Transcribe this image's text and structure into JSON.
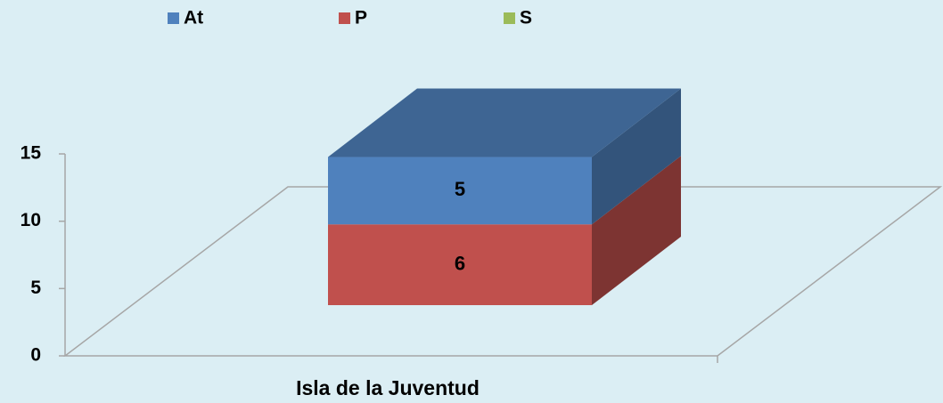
{
  "chart_data": {
    "type": "bar3d_stacked",
    "categories": [
      "Isla de la Juventud"
    ],
    "series": [
      {
        "name": "At",
        "color": "#4f81bd",
        "values": [
          5
        ]
      },
      {
        "name": "P",
        "color": "#c0504d",
        "values": [
          6
        ]
      },
      {
        "name": "S",
        "color": "#9bbb59",
        "values": [
          0
        ]
      }
    ],
    "ylim": [
      0,
      15
    ],
    "yticks": [
      0,
      5,
      10,
      15
    ]
  }
}
